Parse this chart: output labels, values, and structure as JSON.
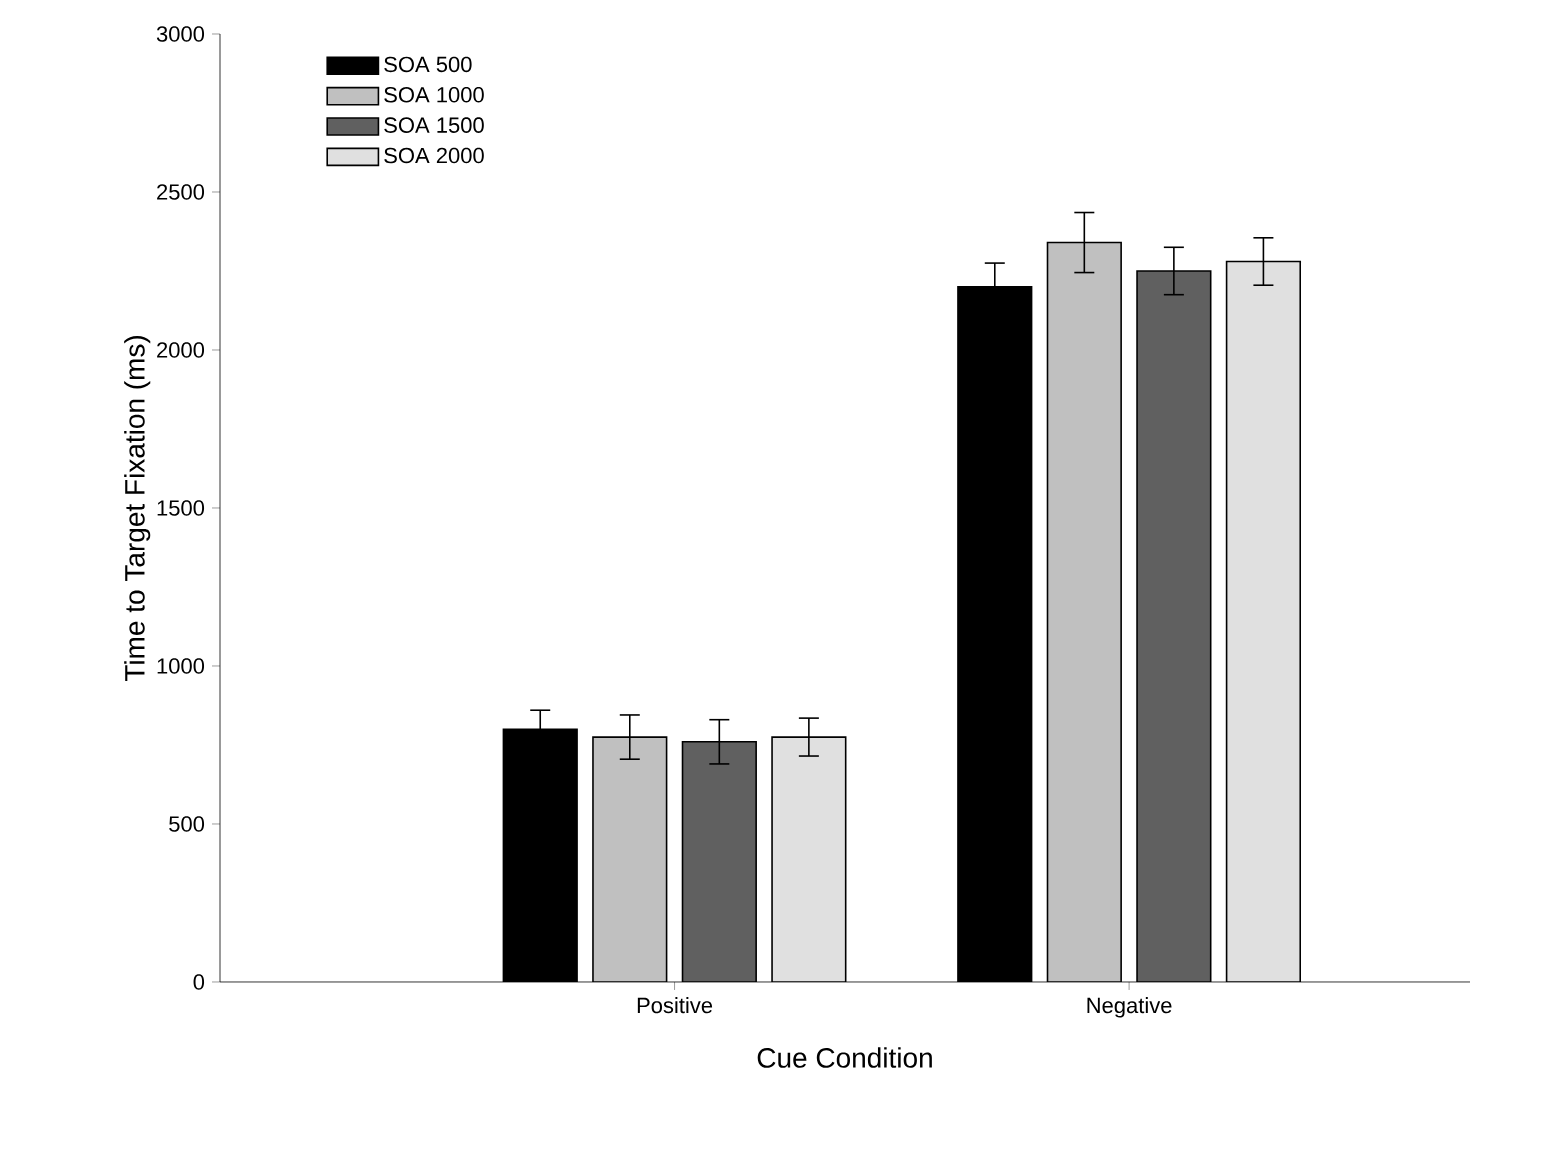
{
  "chart_data": {
    "type": "bar",
    "xlabel": "Cue Condition",
    "ylabel": "Time to Target Fixation (ms)",
    "categories": [
      "Positive",
      "Negative"
    ],
    "series": [
      {
        "name": "SOA 500",
        "color": "#000000",
        "values": [
          800,
          2200
        ],
        "errors": [
          60,
          75
        ]
      },
      {
        "name": "SOA 1000",
        "color": "#c0c0c0",
        "values": [
          775,
          2340
        ],
        "errors": [
          70,
          95
        ]
      },
      {
        "name": "SOA 1500",
        "color": "#606060",
        "values": [
          760,
          2250
        ],
        "errors": [
          70,
          75
        ]
      },
      {
        "name": "SOA 2000",
        "color": "#e0e0e0",
        "values": [
          775,
          2280
        ],
        "errors": [
          60,
          75
        ]
      }
    ],
    "ylim": [
      0,
      3000
    ],
    "yticks": [
      0,
      500,
      1000,
      1500,
      2000,
      2500,
      3000
    ],
    "grid": false,
    "legend": "top left"
  }
}
